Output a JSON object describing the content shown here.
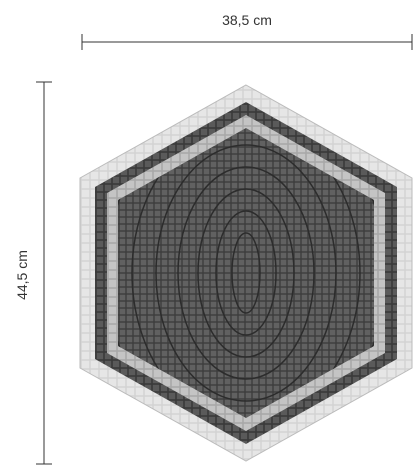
{
  "dimensions": {
    "width": "38,5 cm",
    "height": "44,5 cm"
  }
}
